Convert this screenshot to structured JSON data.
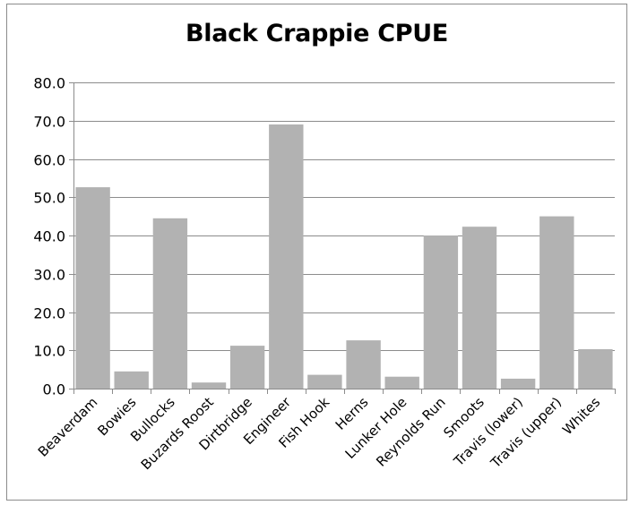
{
  "chart_data": {
    "type": "bar",
    "title": "Black Crappie CPUE",
    "xlabel": "",
    "ylabel": "",
    "categories": [
      "Beaverdam",
      "Bowies",
      "Bullocks",
      "Buzards Roost",
      "Dirtbridge",
      "Engineer",
      "Fish Hook",
      "Herns",
      "Lunker Hole",
      "Reynolds Run",
      "Smoots",
      "Travis (lower)",
      "Travis (upper)",
      "Whites"
    ],
    "values": [
      52.6,
      4.5,
      44.5,
      1.6,
      11.2,
      69.0,
      3.6,
      12.6,
      3.1,
      40.0,
      42.3,
      2.6,
      45.0,
      10.3
    ],
    "ylim": [
      0,
      80
    ],
    "yticks": [
      "0.0",
      "10.0",
      "20.0",
      "30.0",
      "40.0",
      "50.0",
      "60.0",
      "70.0",
      "80.0"
    ],
    "grid": true,
    "legend": "none",
    "bar_color": "#b2b2b2",
    "grid_color": "#8c8c8c"
  }
}
